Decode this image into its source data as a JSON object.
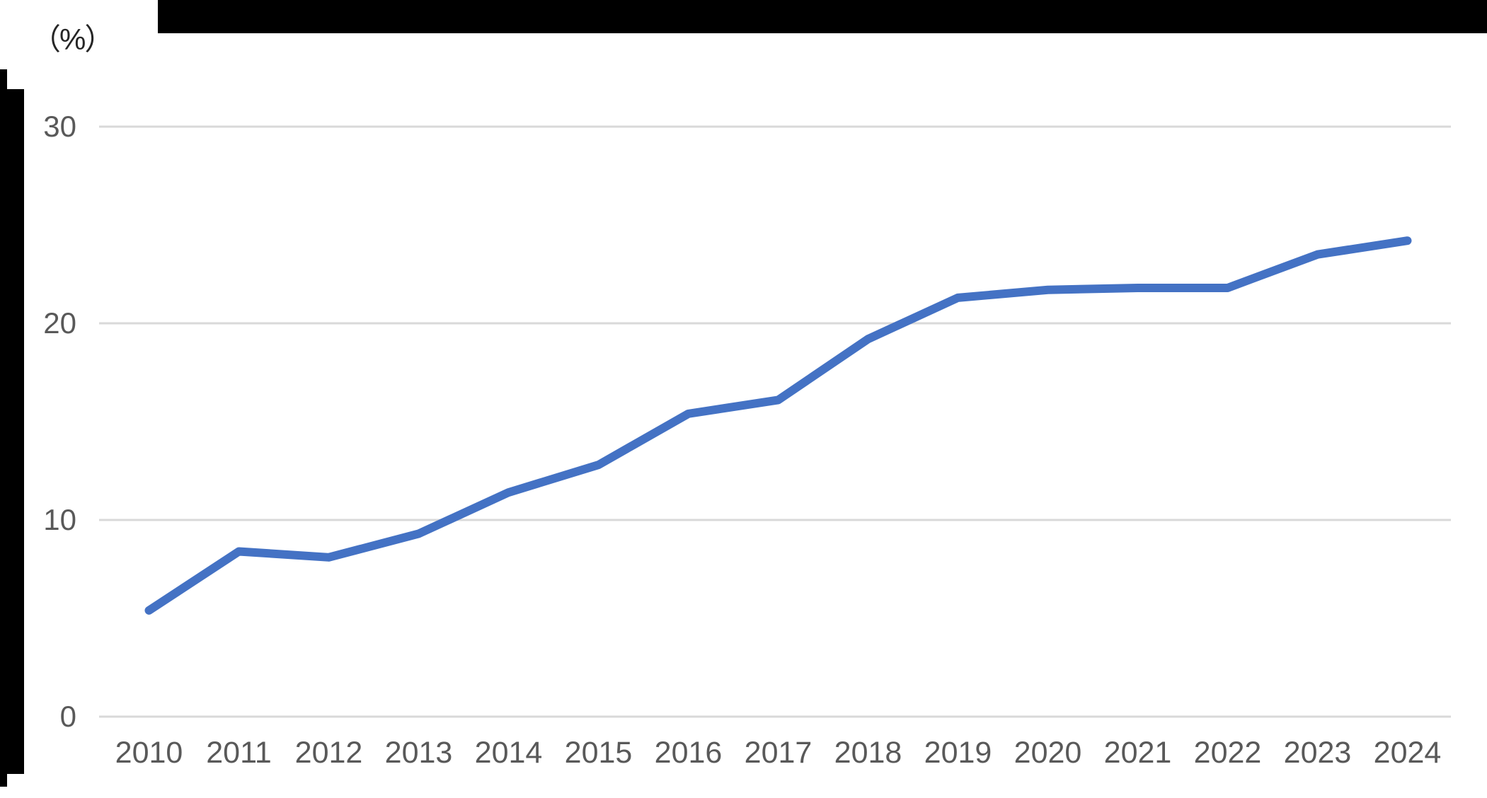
{
  "chart": {
    "unit_label": "（%）"
  },
  "chart_data": {
    "type": "line",
    "title": "",
    "xlabel": "",
    "ylabel": "（%）",
    "categories": [
      "2010",
      "2011",
      "2012",
      "2013",
      "2014",
      "2015",
      "2016",
      "2017",
      "2018",
      "2019",
      "2020",
      "2021",
      "2022",
      "2023",
      "2024"
    ],
    "series": [
      {
        "name": "percentage",
        "values": [
          5.4,
          8.4,
          8.1,
          9.3,
          11.4,
          12.8,
          15.4,
          16.1,
          19.2,
          21.3,
          21.7,
          21.8,
          21.8,
          23.5,
          24.2
        ]
      }
    ],
    "ylim": [
      0,
      30
    ],
    "yticks": [
      0,
      10,
      20,
      30
    ],
    "grid": true,
    "legend": false
  },
  "colors": {
    "line": "#4472C4",
    "grid": "#d9d9d9",
    "tick_text": "#595959",
    "unit_text": "#262626",
    "redaction": "#000000",
    "background": "#ffffff"
  }
}
